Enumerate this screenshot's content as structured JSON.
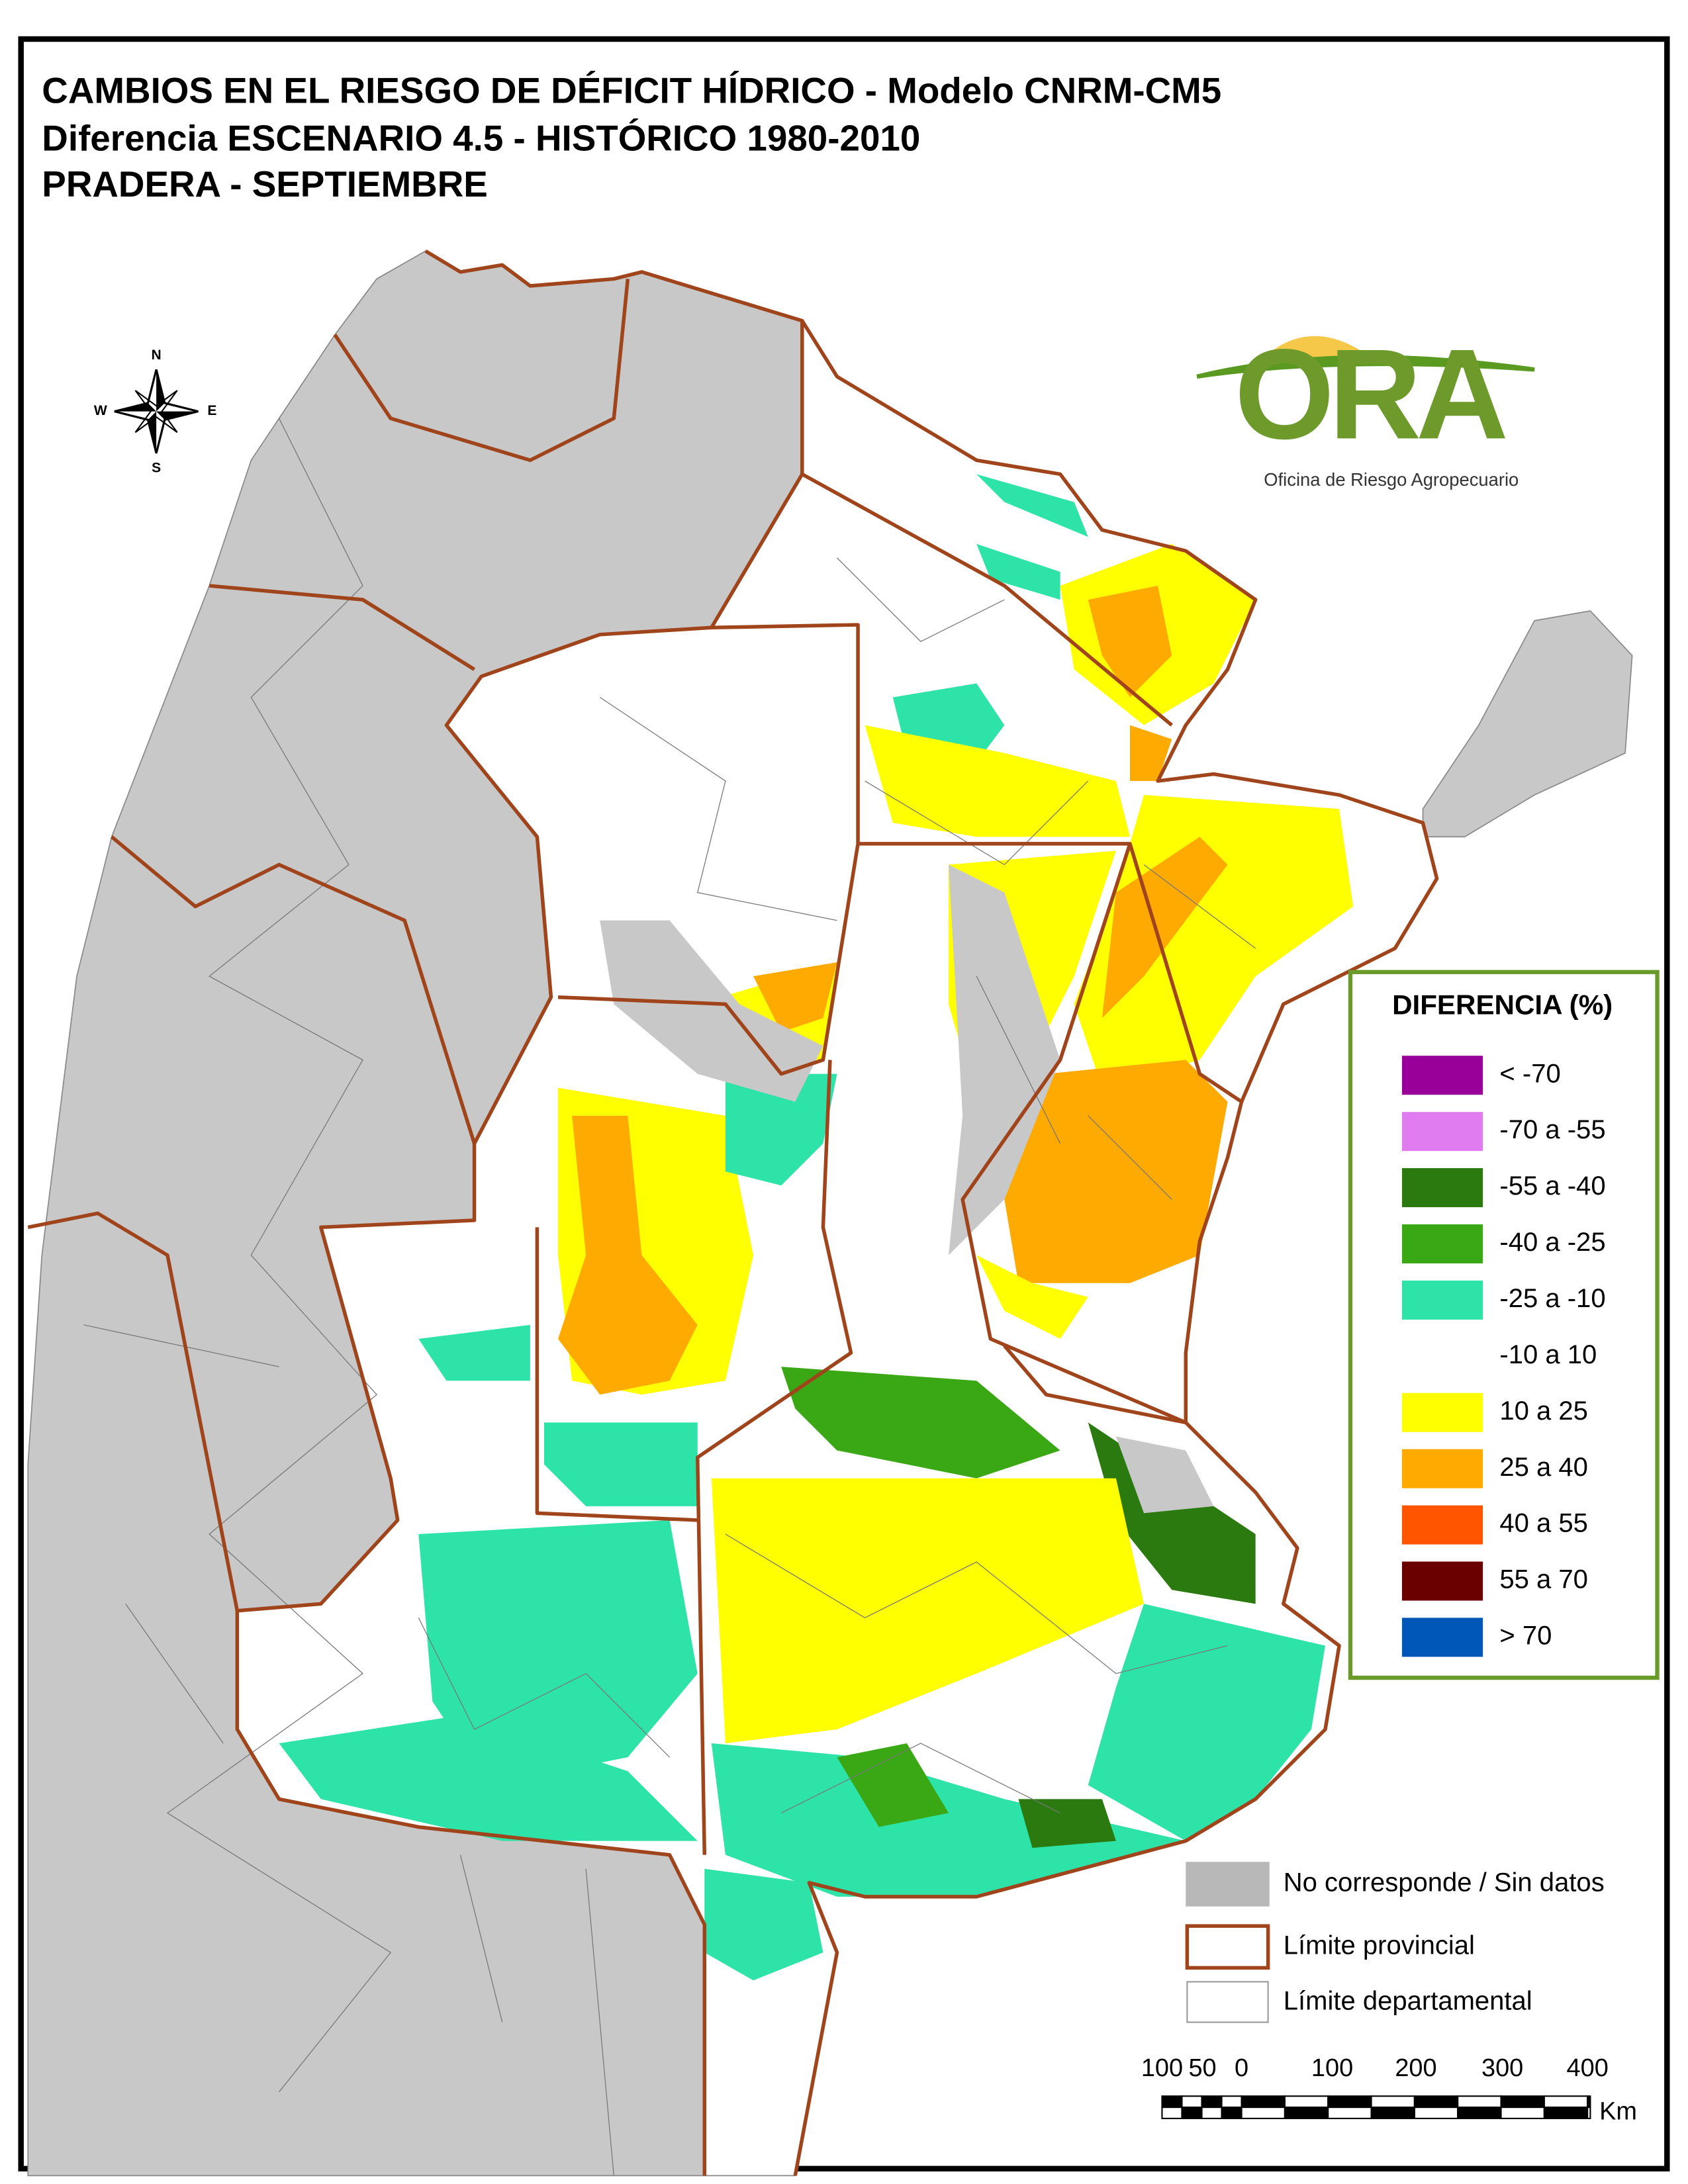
{
  "title": [
    "CAMBIOS EN EL RIESGO DE DÉFICIT HÍDRICO - Modelo CNRM-CM5",
    "Diferencia ESCENARIO 4.5 - HISTÓRICO 1980-2010",
    "PRADERA - SEPTIEMBRE"
  ],
  "logo": {
    "name": "ORA",
    "subtitle": "Oficina de Riesgo Agropecuario"
  },
  "compass": {
    "n": "N",
    "e": "E",
    "s": "S",
    "w": "W"
  },
  "legend": {
    "title": "DIFERENCIA (%)",
    "items": [
      {
        "label": "< -70",
        "color": "#990099"
      },
      {
        "label": "-70 a -55",
        "color": "#e07cf0"
      },
      {
        "label": "-55 a -40",
        "color": "#2a7a10"
      },
      {
        "label": "-40 a -25",
        "color": "#3aa815"
      },
      {
        "label": "-25 a -10",
        "color": "#2ee3a8"
      },
      {
        "label": "-10 a 10",
        "color": "#ffffff"
      },
      {
        "label": "10 a 25",
        "color": "#ffff00"
      },
      {
        "label": "25 a 40",
        "color": "#ffaa00"
      },
      {
        "label": "40 a 55",
        "color": "#ff5500"
      },
      {
        "label": "55 a 70",
        "color": "#6b0000"
      },
      {
        "label": "> 70",
        "color": "#0057b8"
      }
    ]
  },
  "map_legend": [
    "No corresponde / Sin datos",
    "Límite provincial",
    "Límite departamental"
  ],
  "scale_bar": {
    "labels": [
      "100",
      "50",
      "0",
      "100",
      "200",
      "300",
      "400"
    ],
    "unit": "Km"
  }
}
